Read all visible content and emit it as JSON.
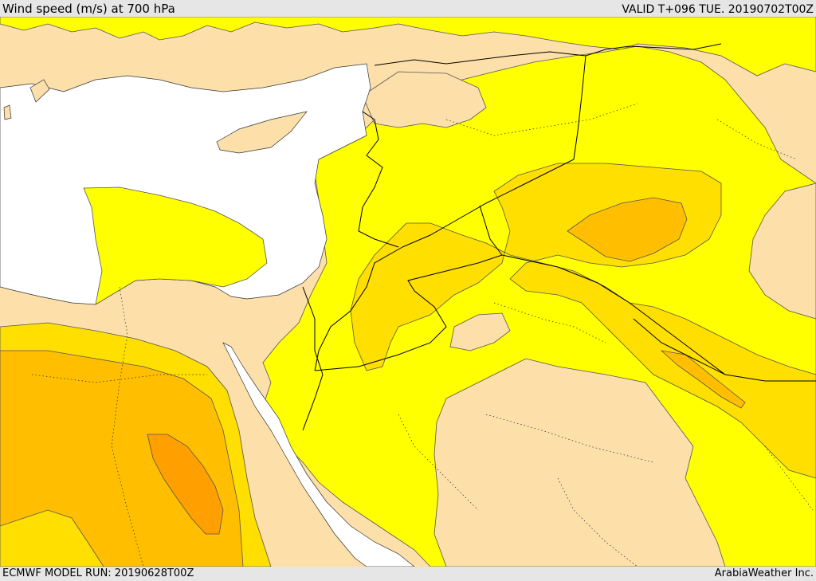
{
  "header": {
    "title": "Wind speed (m/s) at 700 hPa",
    "valid": "VALID T+096 TUE. 20190702T00Z"
  },
  "footer": {
    "model_run": "ECMWF MODEL RUN: 20190628T00Z",
    "credit": "ArabiaWeather Inc."
  },
  "map": {
    "colors": {
      "sea": "#ffffff",
      "low_speed": "#fddfaa",
      "moderate": "#ffff00",
      "fresh": "#ffdf00",
      "strong": "#ffbf00",
      "very_strong": "#ff9f00",
      "contour": "#555555",
      "borders": "#000000"
    }
  }
}
